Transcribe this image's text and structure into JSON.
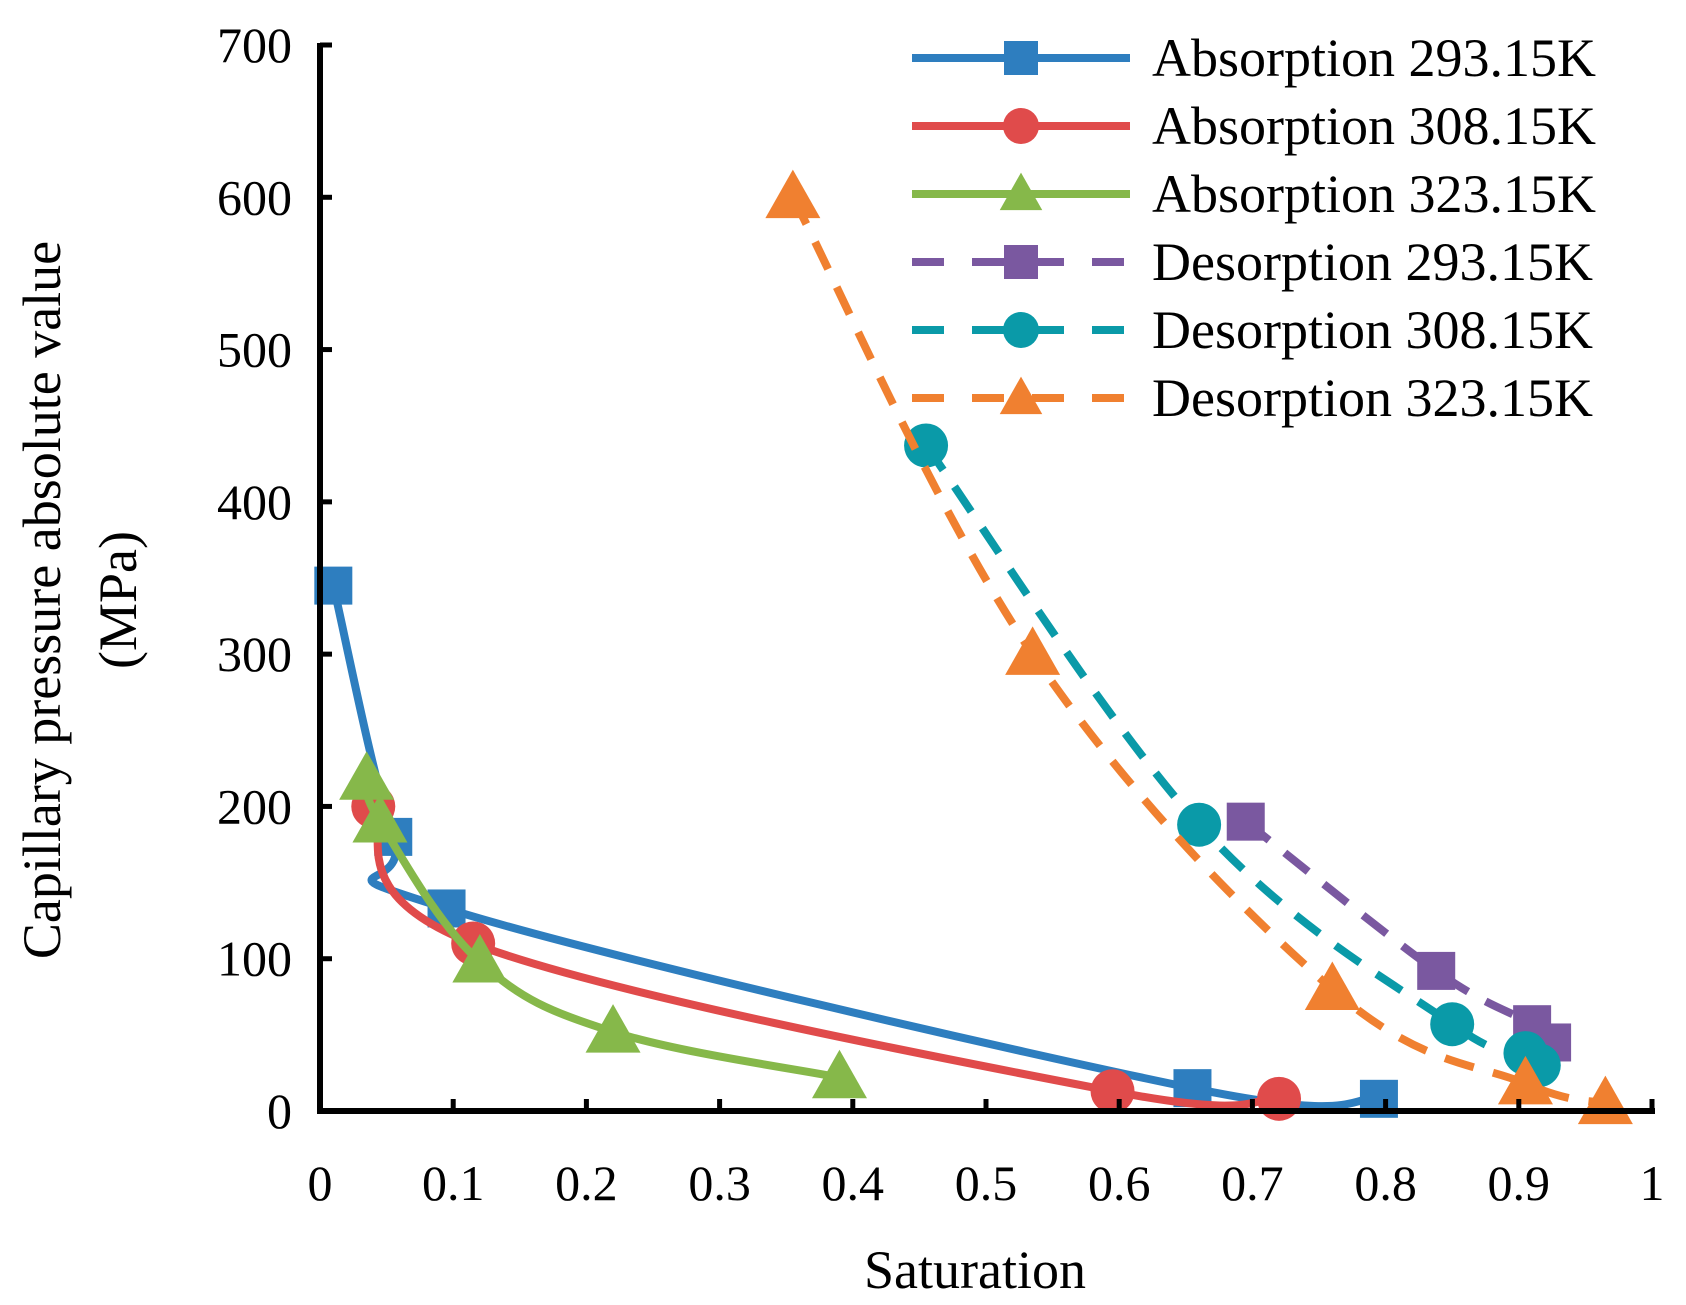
{
  "chart_data": {
    "type": "line",
    "title": "",
    "xlabel": "Saturation",
    "ylabel_lines": [
      "Capillary pressure absolute value",
      "(MPa)"
    ],
    "xlim": [
      0,
      1
    ],
    "ylim": [
      0,
      700
    ],
    "xticks": [
      0,
      0.1,
      0.2,
      0.3,
      0.4,
      0.5,
      0.6,
      0.7,
      0.8,
      0.9,
      1
    ],
    "xtick_labels": [
      "0",
      "0.1",
      "0.2",
      "0.3",
      "0.4",
      "0.5",
      "0.6",
      "0.7",
      "0.8",
      "0.9",
      "1"
    ],
    "yticks": [
      0,
      100,
      200,
      300,
      400,
      500,
      600,
      700
    ],
    "ytick_labels": [
      "0",
      "100",
      "200",
      "300",
      "400",
      "500",
      "600",
      "700"
    ],
    "grid": false,
    "legend_position": "top-right",
    "series": [
      {
        "name": "Absorption 293.15K",
        "color": "#2e7ebf",
        "marker": "square",
        "dashed": false,
        "x": [
          0.01,
          0.055,
          0.095,
          0.655,
          0.795
        ],
        "y": [
          345,
          180,
          133,
          15,
          8
        ]
      },
      {
        "name": "Absorption 308.15K",
        "color": "#e04b4b",
        "marker": "circle",
        "dashed": false,
        "x": [
          0.04,
          0.115,
          0.595,
          0.72
        ],
        "y": [
          200,
          110,
          13,
          8
        ]
      },
      {
        "name": "Absorption 323.15K",
        "color": "#86b84a",
        "marker": "triangle",
        "dashed": false,
        "x": [
          0.035,
          0.045,
          0.12,
          0.22,
          0.39
        ],
        "y": [
          218,
          190,
          98,
          52,
          22
        ]
      },
      {
        "name": "Desorption 293.15K",
        "color": "#7a58a0",
        "marker": "square",
        "dashed": true,
        "x": [
          0.695,
          0.838,
          0.91,
          0.925
        ],
        "y": [
          190,
          92,
          57,
          45
        ]
      },
      {
        "name": "Desorption 308.15K",
        "color": "#0a9aa8",
        "marker": "circle",
        "dashed": true,
        "x": [
          0.455,
          0.66,
          0.85,
          0.905,
          0.915
        ],
        "y": [
          437,
          188,
          57,
          38,
          30
        ]
      },
      {
        "name": "Desorption 323.15K",
        "color": "#f08030",
        "marker": "triangle",
        "dashed": true,
        "x": [
          0.355,
          0.535,
          0.76,
          0.905,
          0.965
        ],
        "y": [
          600,
          300,
          80,
          18,
          5
        ]
      }
    ]
  }
}
